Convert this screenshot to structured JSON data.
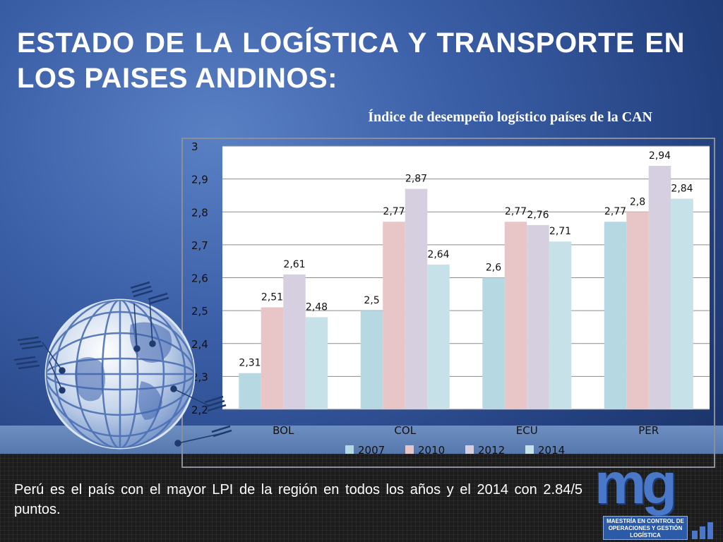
{
  "slide": {
    "title": "ESTADO DE LA LOGÍSTICA Y TRANSPORTE EN LOS PAISES ANDINOS:",
    "chart_caption": "Índice de desempeño logístico países de la CAN",
    "conclusion": "Perú es el país con el mayor LPI de la región en todos los años y el 2014 con  2.84/5  puntos.",
    "logo": {
      "mark": "mg",
      "caption": "MAESTRÍA EN CONTROL DE OPERACIONES Y GESTIÓN LOGÍSTICA"
    }
  },
  "colors": {
    "background": "#3a5ea6",
    "series": [
      "#b6d8e2",
      "#e8c6c7",
      "#d5cfe0",
      "#c6e1e8"
    ]
  },
  "chart_data": {
    "type": "bar",
    "title": "",
    "categories": [
      "BOL",
      "COL",
      "ECU",
      "PER"
    ],
    "series": [
      {
        "name": "2007",
        "values": [
          2.31,
          2.5,
          2.6,
          2.77
        ],
        "labels": [
          "2,31",
          "2,5",
          "2,6",
          "2,77"
        ]
      },
      {
        "name": "2010",
        "values": [
          2.51,
          2.77,
          2.77,
          2.8
        ],
        "labels": [
          "2,51",
          "2,77",
          "2,77",
          "2,8"
        ]
      },
      {
        "name": "2012",
        "values": [
          2.61,
          2.87,
          2.76,
          2.94
        ],
        "labels": [
          "2,61",
          "2,87",
          "2,76",
          "2,94"
        ]
      },
      {
        "name": "2014",
        "values": [
          2.48,
          2.64,
          2.71,
          2.84
        ],
        "labels": [
          "2,48",
          "2,64",
          "2,71",
          "2,84"
        ]
      }
    ],
    "ylim": [
      2.2,
      3
    ],
    "yticks": [
      2.2,
      2.3,
      2.4,
      2.5,
      2.6,
      2.7,
      2.8,
      2.9,
      3
    ],
    "ytick_labels": [
      "2,2",
      "2,3",
      "2,4",
      "2,5",
      "2,6",
      "2,7",
      "2,8",
      "2,9",
      "3"
    ],
    "xlabel": "",
    "ylabel": "",
    "grid": true,
    "legend_position": "bottom"
  }
}
